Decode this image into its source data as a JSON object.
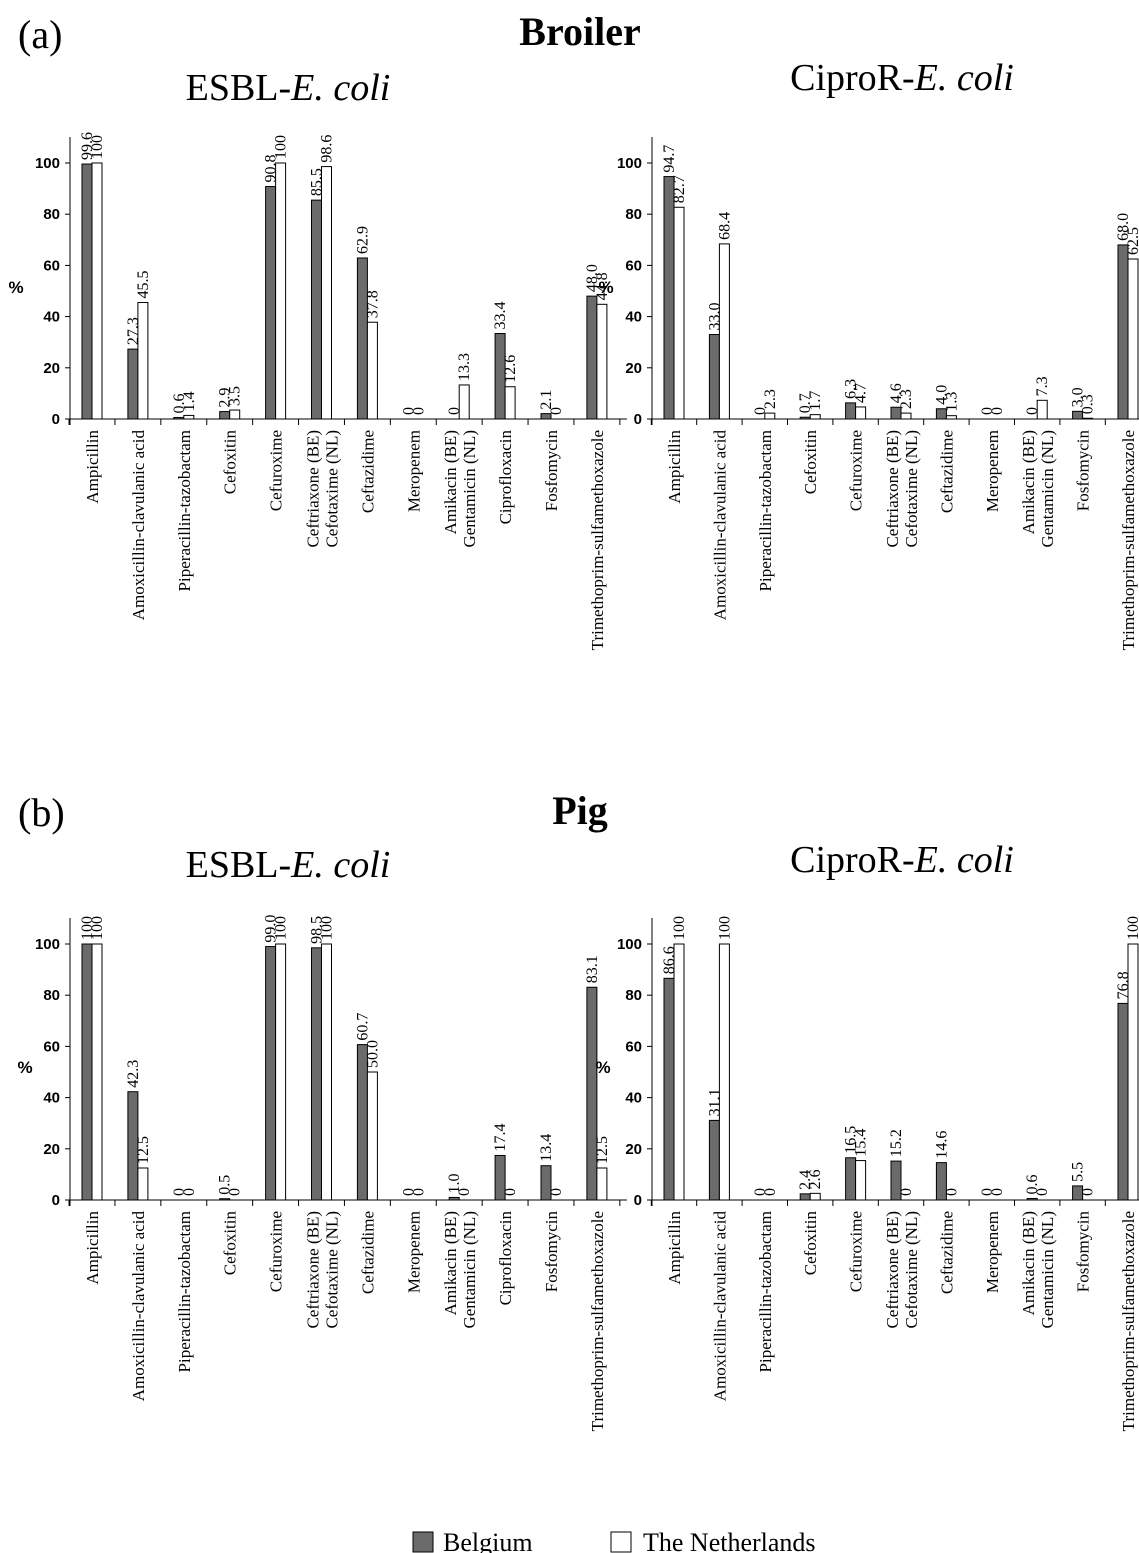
{
  "legend": {
    "items": [
      {
        "label": "Belgium",
        "color": "#6b6b6b"
      },
      {
        "label": "The Netherlands",
        "color": "#ffffff"
      }
    ]
  },
  "sections": [
    {
      "panel_label": "(a)",
      "group_title": "Broiler"
    },
    {
      "panel_label": "(b)",
      "group_title": "Pig"
    }
  ],
  "chart_data": [
    {
      "type": "bar",
      "title": "ESBL-E. coli",
      "title_prefix": "ESBL-",
      "title_italic": "E. coli",
      "ylabel": "%",
      "ylim": [
        0,
        100
      ],
      "yticks": [
        "0",
        "20",
        "40",
        "60",
        "80",
        "100"
      ],
      "categories": [
        "Ampicillin",
        "Amoxicillin-clavulanic acid",
        "Piperacillin-tazobactam",
        "Cefoxitin",
        "Cefuroxime",
        "Ceftriaxone (BE)|Cefotaxime (NL)",
        "Ceftazidime",
        "Meropenem",
        "Amikacin (BE)|Gentamicin (NL)",
        "Ciprofloxacin",
        "Fosfomycin",
        "Trimethoprim-sulfamethoxazole"
      ],
      "series": [
        {
          "name": "Belgium",
          "values": [
            99.6,
            27.3,
            0.6,
            2.9,
            90.8,
            85.5,
            62.9,
            0,
            0,
            33.4,
            2.1,
            48.0
          ],
          "labels": [
            "99.6",
            "27.3",
            "0.6",
            "2.9",
            "90.8",
            "85.5",
            "62.9",
            "0",
            "0",
            "33.4",
            "2.1",
            "48.0"
          ]
        },
        {
          "name": "The Netherlands",
          "values": [
            100,
            45.5,
            1.4,
            3.5,
            100,
            98.6,
            37.8,
            0,
            13.3,
            12.6,
            0,
            44.8
          ],
          "labels": [
            "100",
            "45.5",
            "1.4",
            "3.5",
            "100",
            "98.6",
            "37.8",
            "0",
            "13.3",
            "12.6",
            "0",
            "44.8"
          ]
        }
      ]
    },
    {
      "type": "bar",
      "title": "CiproR-E. coli",
      "title_prefix": "CiproR-",
      "title_italic": "E. coli",
      "ylabel": "%",
      "ylim": [
        0,
        100
      ],
      "yticks": [
        "0",
        "20",
        "40",
        "60",
        "80",
        "100"
      ],
      "categories": [
        "Ampicillin",
        "Amoxicillin-clavulanic acid",
        "Piperacillin-tazobactam",
        "Cefoxitin",
        "Cefuroxime",
        "Ceftriaxone (BE)|Cefotaxime (NL)",
        "Ceftazidime",
        "Meropenem",
        "Amikacin (BE)|Gentamicin (NL)",
        "Fosfomycin",
        "Trimethoprim-sulfamethoxazole"
      ],
      "series": [
        {
          "name": "Belgium",
          "values": [
            94.7,
            33.0,
            0,
            0.7,
            6.3,
            4.6,
            4.0,
            0,
            0,
            3.0,
            68.0
          ],
          "labels": [
            "94.7",
            "33.0",
            "0",
            "0.7",
            "6.3",
            "4.6",
            "4.0",
            "0",
            "0",
            "3.0",
            "68.0"
          ]
        },
        {
          "name": "The Netherlands",
          "values": [
            82.7,
            68.4,
            2.3,
            1.7,
            4.7,
            2.3,
            1.3,
            0,
            7.3,
            0.3,
            62.5
          ],
          "labels": [
            "82.7",
            "68.4",
            "2.3",
            "1.7",
            "4.7",
            "2.3",
            "1.3",
            "0",
            "7.3",
            "0.3",
            "62.5"
          ]
        }
      ]
    },
    {
      "type": "bar",
      "title": "ESBL-E. coli",
      "title_prefix": "ESBL-",
      "title_italic": "E. coli",
      "ylabel": "%",
      "ylim": [
        0,
        100
      ],
      "yticks": [
        "0",
        "20",
        "40",
        "60",
        "80",
        "100"
      ],
      "categories": [
        "Ampicillin",
        "Amoxicillin-clavulanic acid",
        "Piperacillin-tazobactam",
        "Cefoxitin",
        "Cefuroxime",
        "Ceftriaxone (BE)|Cefotaxime (NL)",
        "Ceftazidime",
        "Meropenem",
        "Amikacin (BE)|Gentamicin (NL)",
        "Ciprofloxacin",
        "Fosfomycin",
        "Trimethoprim-sulfamethoxazole"
      ],
      "series": [
        {
          "name": "Belgium",
          "values": [
            100,
            42.3,
            0,
            0.5,
            99.0,
            98.5,
            60.7,
            0,
            1.0,
            17.4,
            13.4,
            83.1
          ],
          "labels": [
            "100",
            "42.3",
            "0",
            "0.5",
            "99.0",
            "98.5",
            "60.7",
            "0",
            "1.0",
            "17.4",
            "13.4",
            "83.1"
          ]
        },
        {
          "name": "The Netherlands",
          "values": [
            100,
            12.5,
            0,
            0,
            100,
            100,
            50.0,
            0,
            0,
            0,
            0,
            12.5
          ],
          "labels": [
            "100",
            "12.5",
            "0",
            "0",
            "100",
            "100",
            "50.0",
            "0",
            "0",
            "0",
            "0",
            "12.5"
          ]
        }
      ]
    },
    {
      "type": "bar",
      "title": "CiproR-E. coli",
      "title_prefix": "CiproR-",
      "title_italic": "E. coli",
      "ylabel": "%",
      "ylim": [
        0,
        100
      ],
      "yticks": [
        "0",
        "20",
        "40",
        "60",
        "80",
        "100"
      ],
      "categories": [
        "Ampicillin",
        "Amoxicillin-clavulanic acid",
        "Piperacillin-tazobactam",
        "Cefoxitin",
        "Cefuroxime",
        "Ceftriaxone (BE)|Cefotaxime (NL)",
        "Ceftazidime",
        "Meropenem",
        "Amikacin (BE)|Gentamicin (NL)",
        "Fosfomycin",
        "Trimethoprim-sulfamethoxazole"
      ],
      "series": [
        {
          "name": "Belgium",
          "values": [
            86.6,
            31.1,
            0,
            2.4,
            16.5,
            15.2,
            14.6,
            0,
            0.6,
            5.5,
            76.8
          ],
          "labels": [
            "86.6",
            "31.1",
            "0",
            "2.4",
            "16.5",
            "15.2",
            "14.6",
            "0",
            "0.6",
            "5.5",
            "76.8"
          ]
        },
        {
          "name": "The Netherlands",
          "values": [
            100,
            100,
            0,
            2.6,
            15.4,
            0,
            0,
            0,
            0,
            0,
            100
          ],
          "labels": [
            "100",
            "100",
            "0",
            "2.6",
            "15.4",
            "0",
            "0",
            "0",
            "0",
            "0",
            "100"
          ]
        }
      ]
    }
  ]
}
